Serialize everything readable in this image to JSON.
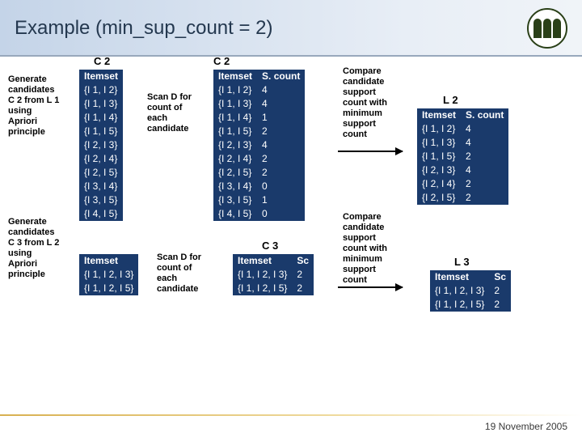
{
  "title": "Example (min_sup_count = 2)",
  "footer_date": "19 November 2005",
  "labels": {
    "gen_c2": "Generate\ncandidates\nC 2 from L 1\nusing\nApriori\nprinciple",
    "gen_c3": "Generate\ncandidates\nC 3 from L 2\nusing\nApriori\nprinciple",
    "scan1": "Scan D for\ncount of\neach\ncandidate",
    "scan2": "Scan D for\ncount of\neach\ncandidate",
    "cmp1": "Compare\ncandidate\nsupport\ncount with\nminimum\nsupport\ncount",
    "cmp2": "Compare\ncandidate\nsupport\ncount with\nminimum\nsupport\ncount"
  },
  "caps": {
    "c2a": "C 2",
    "c2b": "C 2",
    "c3a": "C 3",
    "l2": "L 2",
    "l3": "L 3"
  },
  "tables": {
    "c2a": {
      "headers": [
        "Itemset"
      ],
      "rows": [
        [
          "{I 1, I 2}"
        ],
        [
          "{I 1, I 3}"
        ],
        [
          "{I 1, I 4}"
        ],
        [
          "{I 1, I 5}"
        ],
        [
          "{I 2, I 3}"
        ],
        [
          "{I 2, I 4}"
        ],
        [
          "{I 2, I 5}"
        ],
        [
          "{I 3, I 4}"
        ],
        [
          "{I 3, I 5}"
        ],
        [
          "{I 4, I 5}"
        ]
      ]
    },
    "c2b": {
      "headers": [
        "Itemset",
        "S. count"
      ],
      "rows": [
        [
          "{I 1, I 2}",
          "4"
        ],
        [
          "{I 1, I 3}",
          "4"
        ],
        [
          "{I 1, I 4}",
          "1"
        ],
        [
          "{I 1, I 5}",
          "2"
        ],
        [
          "{I 2, I 3}",
          "4"
        ],
        [
          "{I 2, I 4}",
          "2"
        ],
        [
          "{I 2, I 5}",
          "2"
        ],
        [
          "{I 3, I 4}",
          "0"
        ],
        [
          "{I 3, I 5}",
          "1"
        ],
        [
          "{I 4, I 5}",
          "0"
        ]
      ]
    },
    "l2": {
      "headers": [
        "Itemset",
        "S. count"
      ],
      "rows": [
        [
          "{I 1, I 2}",
          "4"
        ],
        [
          "{I 1, I 3}",
          "4"
        ],
        [
          "{I 1, I 5}",
          "2"
        ],
        [
          "{I 2, I 3}",
          "4"
        ],
        [
          "{I 2, I 4}",
          "2"
        ],
        [
          "{I 2, I 5}",
          "2"
        ]
      ]
    },
    "c3left": {
      "headers": [
        "Itemset"
      ],
      "rows": [
        [
          ""
        ],
        [
          "{I 1, I 2, I 3}"
        ],
        [
          "{I 1, I 2, I 5}"
        ]
      ]
    },
    "c3b": {
      "headers": [
        "Itemset",
        "Sc"
      ],
      "rows": [
        [
          " ",
          " "
        ],
        [
          "{I 1, I 2, I 3}",
          "2"
        ],
        [
          "{I 1, I 2, I 5}",
          "2"
        ]
      ]
    },
    "l3": {
      "headers": [
        "Itemset",
        "Sc"
      ],
      "rows": [
        [
          " ",
          " "
        ],
        [
          "{I 1, I 2, I 3}",
          "2"
        ],
        [
          "{I 1, I 2, I 5}",
          "2"
        ]
      ]
    }
  },
  "style": {
    "table_bg": "#1a3a6b",
    "table_fg": "#ffffff",
    "font_size_pt": 12
  }
}
